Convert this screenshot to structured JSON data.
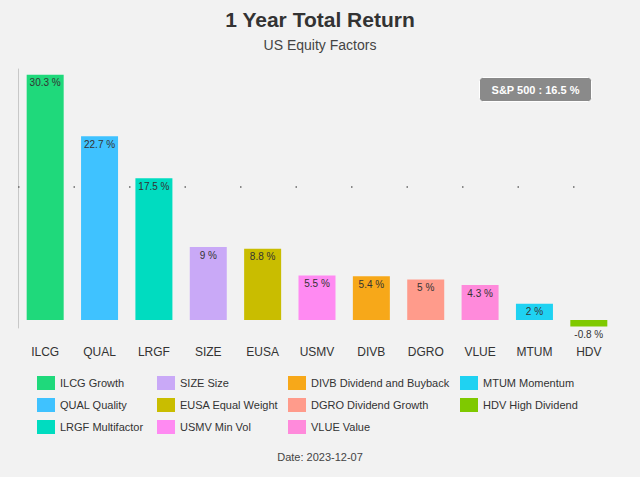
{
  "chart_data": {
    "type": "bar",
    "title": "1 Year Total Return",
    "subtitle": "US Equity Factors",
    "categories": [
      "ILCG",
      "QUAL",
      "LRGF",
      "SIZE",
      "EUSA",
      "USMV",
      "DIVB",
      "DGRO",
      "VLUE",
      "MTUM",
      "HDV"
    ],
    "series": [
      {
        "name": "ILCG Growth",
        "color": "#1fd97b",
        "values": [
          30.3,
          null,
          null,
          null,
          null,
          null,
          null,
          null,
          null,
          null,
          null
        ],
        "value_labels": [
          "30.3 %",
          null,
          null,
          null,
          null,
          null,
          null,
          null,
          null,
          null,
          null
        ]
      },
      {
        "name": "QUAL Quality",
        "color": "#3fc2ff",
        "values": [
          null,
          22.7,
          null,
          null,
          null,
          null,
          null,
          null,
          null,
          null,
          null
        ],
        "value_labels": [
          null,
          "22.7 %",
          null,
          null,
          null,
          null,
          null,
          null,
          null,
          null,
          null
        ]
      },
      {
        "name": "LRGF Multifactor",
        "color": "#00dcc0",
        "values": [
          null,
          null,
          17.5,
          null,
          null,
          null,
          null,
          null,
          null,
          null,
          null
        ],
        "value_labels": [
          null,
          null,
          "17.5 %",
          null,
          null,
          null,
          null,
          null,
          null,
          null,
          null
        ]
      },
      {
        "name": "SIZE Size",
        "color": "#c9a9f7",
        "values": [
          null,
          null,
          null,
          9,
          null,
          null,
          null,
          null,
          null,
          null,
          null
        ],
        "value_labels": [
          null,
          null,
          null,
          "9 %",
          null,
          null,
          null,
          null,
          null,
          null,
          null
        ]
      },
      {
        "name": "EUSA Equal Weight",
        "color": "#c9bd00",
        "values": [
          null,
          null,
          null,
          null,
          8.8,
          null,
          null,
          null,
          null,
          null,
          null
        ],
        "value_labels": [
          null,
          null,
          null,
          null,
          "8.8 %",
          null,
          null,
          null,
          null,
          null,
          null
        ]
      },
      {
        "name": "USMV Min Vol",
        "color": "#ff8af2",
        "values": [
          null,
          null,
          null,
          null,
          null,
          5.5,
          null,
          null,
          null,
          null,
          null
        ],
        "value_labels": [
          null,
          null,
          null,
          null,
          null,
          "5.5 %",
          null,
          null,
          null,
          null,
          null
        ]
      },
      {
        "name": "DIVB Dividend and Buyback",
        "color": "#f7a819",
        "values": [
          null,
          null,
          null,
          null,
          null,
          null,
          5.4,
          null,
          null,
          null,
          null
        ],
        "value_labels": [
          null,
          null,
          null,
          null,
          null,
          null,
          "5.4 %",
          null,
          null,
          null,
          null
        ]
      },
      {
        "name": "DGRO Dividend Growth",
        "color": "#ff9b8b",
        "values": [
          null,
          null,
          null,
          null,
          null,
          null,
          null,
          5,
          null,
          null,
          null
        ],
        "value_labels": [
          null,
          null,
          null,
          null,
          null,
          null,
          null,
          "5 %",
          null,
          null,
          null
        ]
      },
      {
        "name": "VLUE Value",
        "color": "#ff8adb",
        "values": [
          null,
          null,
          null,
          null,
          null,
          null,
          null,
          null,
          4.3,
          null,
          null
        ],
        "value_labels": [
          null,
          null,
          null,
          null,
          null,
          null,
          null,
          null,
          "4.3 %",
          null,
          null
        ]
      },
      {
        "name": "MTUM Momentum",
        "color": "#1fd2f2",
        "values": [
          null,
          null,
          null,
          null,
          null,
          null,
          null,
          null,
          null,
          2,
          null
        ],
        "value_labels": [
          null,
          null,
          null,
          null,
          null,
          null,
          null,
          null,
          null,
          "2 %",
          null
        ]
      },
      {
        "name": "HDV High Dividend",
        "color": "#7fc900",
        "values": [
          null,
          null,
          null,
          null,
          null,
          null,
          null,
          null,
          null,
          null,
          -0.8
        ],
        "value_labels": [
          null,
          null,
          null,
          null,
          null,
          null,
          null,
          null,
          null,
          null,
          "-0.8 %"
        ]
      }
    ],
    "reference_line": {
      "label": "S&P 500 : 16.5 %",
      "value": 16.5
    },
    "footer": "Date: 2023-12-07",
    "ylim": [
      -1,
      31
    ],
    "stacked": true,
    "data_labels": true,
    "tick_labels": "x",
    "grid": false
  }
}
